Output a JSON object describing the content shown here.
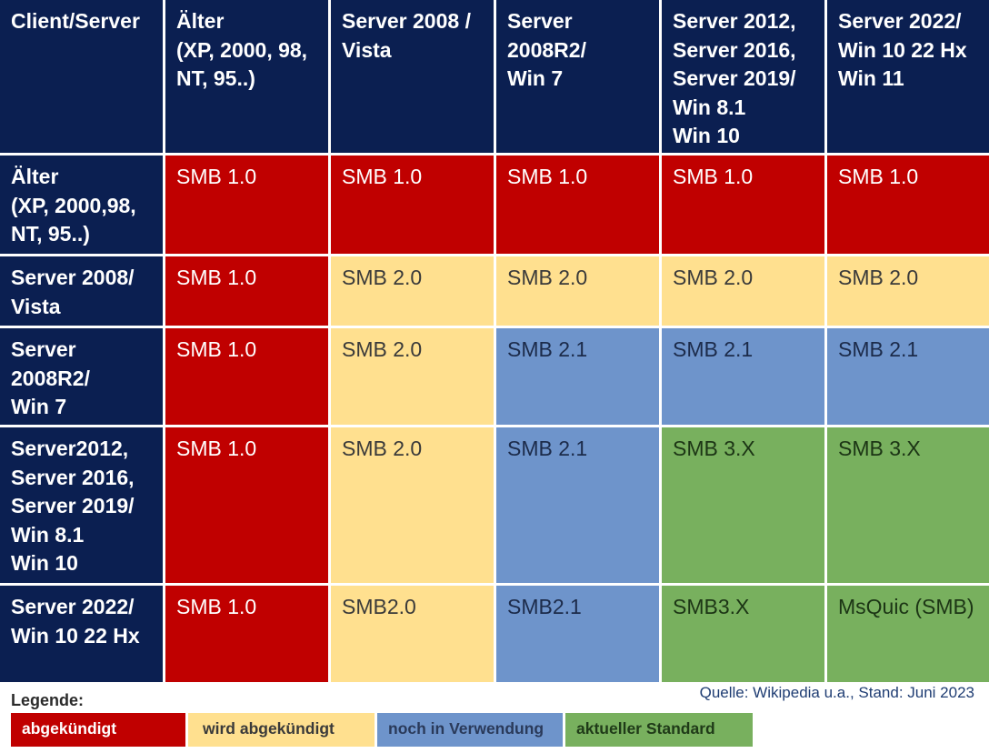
{
  "columns": [
    "Client/Server",
    "Älter\n(XP, 2000, 98,\nNT, 95..)",
    "Server 2008 /\nVista",
    "Server\n2008R2/\nWin 7",
    "Server 2012,\nServer 2016,\nServer 2019/\nWin 8.1\nWin 10",
    "Server 2022/\nWin 10 22 Hx\nWin 11"
  ],
  "rows": [
    {
      "label": "Älter\n(XP, 2000,98,\nNT, 95..)",
      "cells": [
        {
          "text": "SMB 1.0",
          "status": "red"
        },
        {
          "text": "SMB 1.0",
          "status": "red"
        },
        {
          "text": "SMB 1.0",
          "status": "red"
        },
        {
          "text": "SMB 1.0",
          "status": "red"
        },
        {
          "text": "SMB 1.0",
          "status": "red"
        }
      ]
    },
    {
      "label": "Server 2008/\nVista",
      "cells": [
        {
          "text": "SMB 1.0",
          "status": "red"
        },
        {
          "text": "SMB 2.0",
          "status": "yellow"
        },
        {
          "text": "SMB 2.0",
          "status": "yellow"
        },
        {
          "text": "SMB 2.0",
          "status": "yellow"
        },
        {
          "text": "SMB 2.0",
          "status": "yellow"
        }
      ]
    },
    {
      "label": "Server\n2008R2/\nWin 7",
      "cells": [
        {
          "text": "SMB 1.0",
          "status": "red"
        },
        {
          "text": "SMB 2.0",
          "status": "yellow"
        },
        {
          "text": "SMB 2.1",
          "status": "blue"
        },
        {
          "text": "SMB 2.1",
          "status": "blue"
        },
        {
          "text": "SMB 2.1",
          "status": "blue"
        }
      ]
    },
    {
      "label": "Server2012,\nServer 2016,\nServer 2019/\nWin 8.1\nWin 10",
      "cells": [
        {
          "text": "SMB 1.0",
          "status": "red"
        },
        {
          "text": "SMB 2.0",
          "status": "yellow"
        },
        {
          "text": "SMB 2.1",
          "status": "blue"
        },
        {
          "text": "SMB 3.X",
          "status": "green"
        },
        {
          "text": "SMB 3.X",
          "status": "green"
        }
      ]
    },
    {
      "label": "Server 2022/\nWin 10 22 Hx",
      "cells": [
        {
          "text": "SMB 1.0",
          "status": "red"
        },
        {
          "text": "SMB2.0",
          "status": "yellow"
        },
        {
          "text": "SMB2.1",
          "status": "blue"
        },
        {
          "text": "SMB3.X",
          "status": "green"
        },
        {
          "text": "MsQuic (SMB)",
          "status": "green"
        }
      ]
    }
  ],
  "legend": {
    "title": "Legende:",
    "items": [
      {
        "label": "abgekündigt",
        "status": "red"
      },
      {
        "label": "wird abgekündigt",
        "status": "yellow"
      },
      {
        "label": "noch in Verwendung",
        "status": "blue"
      },
      {
        "label": "aktueller Standard",
        "status": "green"
      }
    ]
  },
  "source": "Quelle: Wikipedia u.a., Stand: Juni 2023",
  "colors": {
    "header": "#0b1f51",
    "red": "#c00000",
    "yellow": "#ffe08f",
    "blue": "#6e94cb",
    "green": "#78b05e"
  }
}
